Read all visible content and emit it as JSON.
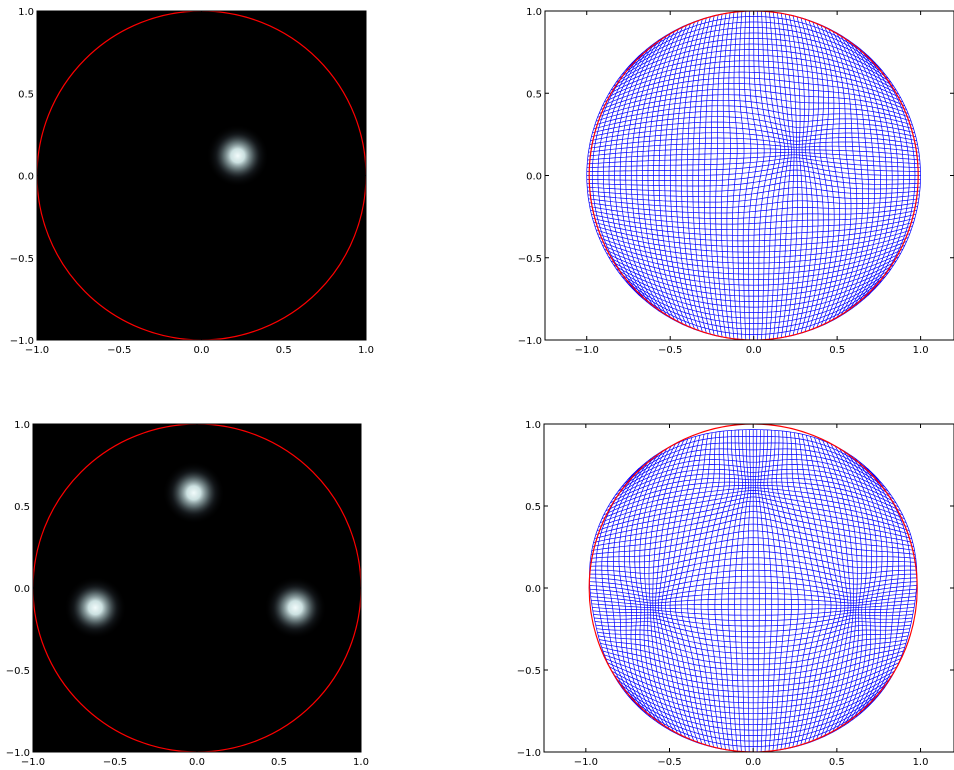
{
  "figure": {
    "panels": [
      {
        "id": "top-left",
        "chart_data": {
          "type": "heatmap",
          "colormap": "bone",
          "background_color": "#000000",
          "xlim": [
            -1.0,
            1.0
          ],
          "ylim": [
            -1.0,
            1.0
          ],
          "x_ticks": [
            -1.0,
            -0.5,
            0.0,
            0.5,
            1.0
          ],
          "y_ticks": [
            -1.0,
            -0.5,
            0.0,
            0.5,
            1.0
          ],
          "x_tick_labels": [
            "−1.0",
            "−0.5",
            "0.0",
            "0.5",
            "1.0"
          ],
          "y_tick_labels": [
            "−1.0",
            "−0.5",
            "0.0",
            "0.5",
            "1.0"
          ],
          "circle": {
            "center": [
              0,
              0
            ],
            "radius": 1.0,
            "color": "#ff0000"
          },
          "blobs": [
            {
              "x": 0.22,
              "y": 0.12
            }
          ]
        }
      },
      {
        "id": "top-right",
        "chart_data": {
          "type": "line",
          "description_kind": "deformed grid mesh",
          "grid_color": "#0000ff",
          "boundary_color": "#ff0000",
          "xlim": [
            -1.25,
            1.2
          ],
          "ylim": [
            -1.0,
            1.0
          ],
          "x_ticks": [
            -1.0,
            -0.5,
            0.0,
            0.5,
            1.0
          ],
          "y_ticks": [
            -1.0,
            -0.5,
            0.0,
            0.5,
            1.0
          ],
          "x_tick_labels": [
            "−1.0",
            "−0.5",
            "0.0",
            "0.5",
            "1.0"
          ],
          "y_tick_labels": [
            "−1.0",
            "−0.5",
            "0.0",
            "0.5",
            "1.0"
          ],
          "circle": {
            "center": [
              0,
              0
            ],
            "radius": 1.0
          },
          "grid_lines": 61,
          "attractors": [
            {
              "x": 0.25,
              "y": 0.15
            }
          ]
        }
      },
      {
        "id": "bottom-left",
        "chart_data": {
          "type": "heatmap",
          "colormap": "bone",
          "background_color": "#000000",
          "xlim": [
            -1.0,
            1.0
          ],
          "ylim": [
            -1.0,
            1.0
          ],
          "x_ticks": [
            -1.0,
            -0.5,
            0.0,
            0.5,
            1.0
          ],
          "y_ticks": [
            -1.0,
            -0.5,
            0.0,
            0.5,
            1.0
          ],
          "x_tick_labels": [
            "−1.0",
            "−0.5",
            "0.0",
            "0.5",
            "1.0"
          ],
          "y_tick_labels": [
            "−1.0",
            "−0.5",
            "0.0",
            "0.5",
            "1.0"
          ],
          "circle": {
            "center": [
              0,
              0
            ],
            "radius": 1.0,
            "color": "#ff0000"
          },
          "blobs": [
            {
              "x": -0.62,
              "y": -0.12
            },
            {
              "x": -0.02,
              "y": 0.58
            },
            {
              "x": 0.6,
              "y": -0.12
            }
          ]
        }
      },
      {
        "id": "bottom-right",
        "chart_data": {
          "type": "line",
          "description_kind": "deformed grid mesh",
          "grid_color": "#0000ff",
          "boundary_color": "#ff0000",
          "xlim": [
            -1.25,
            1.2
          ],
          "ylim": [
            -1.0,
            1.0
          ],
          "x_ticks": [
            -1.0,
            -0.5,
            0.0,
            0.5,
            1.0
          ],
          "y_ticks": [
            -1.0,
            -0.5,
            0.0,
            0.5,
            1.0
          ],
          "x_tick_labels": [
            "−1.0",
            "−0.5",
            "0.0",
            "0.5",
            "1.0"
          ],
          "y_tick_labels": [
            "−1.0",
            "−0.5",
            "0.0",
            "0.5",
            "1.0"
          ],
          "circle": {
            "center": [
              0,
              0
            ],
            "radius": 1.0
          },
          "grid_lines": 61,
          "attractors": [
            {
              "x": -0.6,
              "y": -0.12
            },
            {
              "x": 0.0,
              "y": 0.62
            },
            {
              "x": 0.6,
              "y": -0.12
            }
          ]
        }
      }
    ]
  }
}
